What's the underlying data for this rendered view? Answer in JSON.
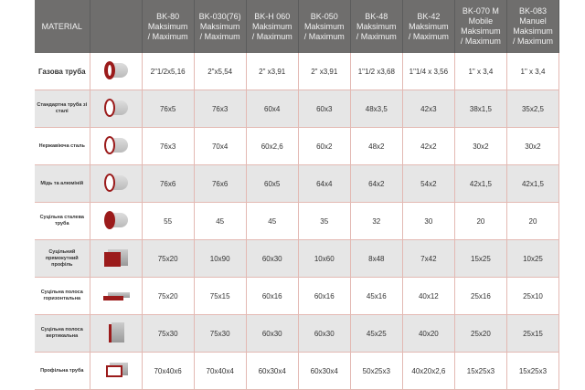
{
  "header": {
    "material": "MATERIAL",
    "columns": [
      [
        "BK-80",
        "Maksimum",
        "/ Maximum"
      ],
      [
        "BK-030(76)",
        "Maksimum",
        "/ Maximum"
      ],
      [
        "BK-H 060",
        "Maksimum",
        "/ Maximum"
      ],
      [
        "BK-050",
        "Maksimum",
        "/ Maximum"
      ],
      [
        "BK-48",
        "Maksimum",
        "/ Maximum"
      ],
      [
        "BK-42",
        "Maksimum",
        "/ Maximum"
      ],
      [
        "BK-070 M",
        "Mobile",
        "Maksimum",
        "/ Maximum"
      ],
      [
        "BK-083",
        "Manuel",
        "Maksimum",
        "/ Maximum"
      ]
    ]
  },
  "rows": [
    {
      "material": "Газова труба",
      "icon": "gas-pipe-icon",
      "values": [
        "2\"1/2x5,16",
        "2\"x5,54",
        "2\" x3,91",
        "2\" x3,91",
        "1\"1/2 x3,68",
        "1\"1/4 x 3,56",
        "1\" x 3,4",
        "1\" x 3,4"
      ]
    },
    {
      "material": "Стандартна труба зі сталі",
      "icon": "steel-pipe-icon",
      "values": [
        "76x5",
        "76x3",
        "60x4",
        "60x3",
        "48x3,5",
        "42x3",
        "38x1,5",
        "35x2,5"
      ]
    },
    {
      "material": "Нержавіюча сталь",
      "icon": "stainless-pipe-icon",
      "values": [
        "76x3",
        "70x4",
        "60x2,6",
        "60x2",
        "48x2",
        "42x2",
        "30x2",
        "30x2"
      ]
    },
    {
      "material": "Мідь та алюміній",
      "icon": "copper-pipe-icon",
      "values": [
        "76x6",
        "76x6",
        "60x5",
        "64x4",
        "64x2",
        "54x2",
        "42x1,5",
        "42x1,5"
      ]
    },
    {
      "material": "Суцільна сталева труба",
      "icon": "solid-round-bar-icon",
      "values": [
        "55",
        "45",
        "45",
        "35",
        "32",
        "30",
        "20",
        "20"
      ]
    },
    {
      "material": "Суцільний прямокутний профіль",
      "icon": "solid-rectangular-bar-icon",
      "values": [
        "75x20",
        "10x90",
        "60x30",
        "10x60",
        "8x48",
        "7x42",
        "15x25",
        "10x25"
      ]
    },
    {
      "material": "Суцільна полоса горизонтальна",
      "icon": "horizontal-flat-bar-icon",
      "values": [
        "75x20",
        "75x15",
        "60x16",
        "60x16",
        "45x16",
        "40x12",
        "25x16",
        "25x10"
      ]
    },
    {
      "material": "Суцільна полоса вертикальна",
      "icon": "vertical-flat-bar-icon",
      "values": [
        "75x30",
        "75x30",
        "60x30",
        "60x30",
        "45x25",
        "40x20",
        "25x20",
        "25x15"
      ]
    },
    {
      "material": "Профільна труба",
      "icon": "rectangular-tube-icon",
      "values": [
        "70x40x6",
        "70x40x4",
        "60x30x4",
        "60x30x4",
        "50x25x3",
        "40x20x2,6",
        "15x25x3",
        "15x25x3"
      ]
    }
  ],
  "colors": {
    "header": "#6f6e6d",
    "accent": "#9b1b1b",
    "stripe": "#e6e6e6"
  }
}
